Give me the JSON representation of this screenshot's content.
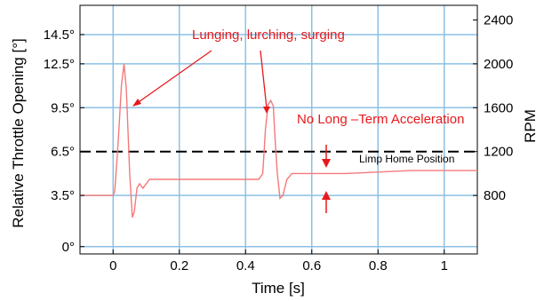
{
  "chart_data": {
    "type": "line",
    "xlabel": "Time [s]",
    "ylabel": "Relative Throttle Opening [°]",
    "y2label": "RPM",
    "xlim": [
      -0.1,
      1.1
    ],
    "ylim": [
      -0.5,
      16.5
    ],
    "x_ticks": [
      0,
      0.2,
      0.4,
      0.6,
      0.8,
      1
    ],
    "x_tick_labels": [
      "0",
      "0.2",
      "0.4",
      "0.6",
      "0.8",
      "1"
    ],
    "y_ticks": [
      0,
      3.5,
      6.5,
      9.5,
      12.5,
      14.5
    ],
    "y_tick_labels": [
      "0°",
      "3.5°",
      "6.5°",
      "9.5°",
      "12.5°",
      "14.5°"
    ],
    "y2_ticks": [
      800,
      1200,
      1600,
      2000,
      2400
    ],
    "y2_tick_labels": [
      "800",
      "1200",
      "1600",
      "2000",
      "2400"
    ],
    "grid": true,
    "series": [
      {
        "color": "#f47a7a",
        "x": [
          -0.1,
          0.0,
          0.005,
          0.015,
          0.025,
          0.033,
          0.04,
          0.05,
          0.058,
          0.064,
          0.072,
          0.08,
          0.09,
          0.1,
          0.11,
          0.15,
          0.25,
          0.35,
          0.44,
          0.452,
          0.46,
          0.468,
          0.476,
          0.484,
          0.49,
          0.496,
          0.504,
          0.513,
          0.525,
          0.54,
          0.6,
          0.7,
          0.8,
          0.9,
          1.0,
          1.1
        ],
        "y": [
          3.5,
          3.5,
          3.8,
          7,
          11,
          12.5,
          10.8,
          5,
          2,
          2.4,
          4,
          4.3,
          4.0,
          4.3,
          4.6,
          4.6,
          4.6,
          4.6,
          4.6,
          5,
          8,
          9.7,
          10,
          9.6,
          7,
          5,
          3.3,
          3.5,
          4.6,
          5.0,
          5.0,
          5.0,
          5.1,
          5.2,
          5.2,
          5.2
        ]
      }
    ],
    "reference_line": {
      "y": 6.5,
      "label": "Limp Home Position",
      "style": "dashed",
      "color": "#000000"
    },
    "annotations": {
      "lunging": "Lunging, lurching, surging",
      "no_accel": "No Long –Term Acceleration"
    },
    "colors": {
      "annotation": "#e8191c",
      "grid": "#8cc0e6",
      "series": "#f47a7a"
    }
  }
}
